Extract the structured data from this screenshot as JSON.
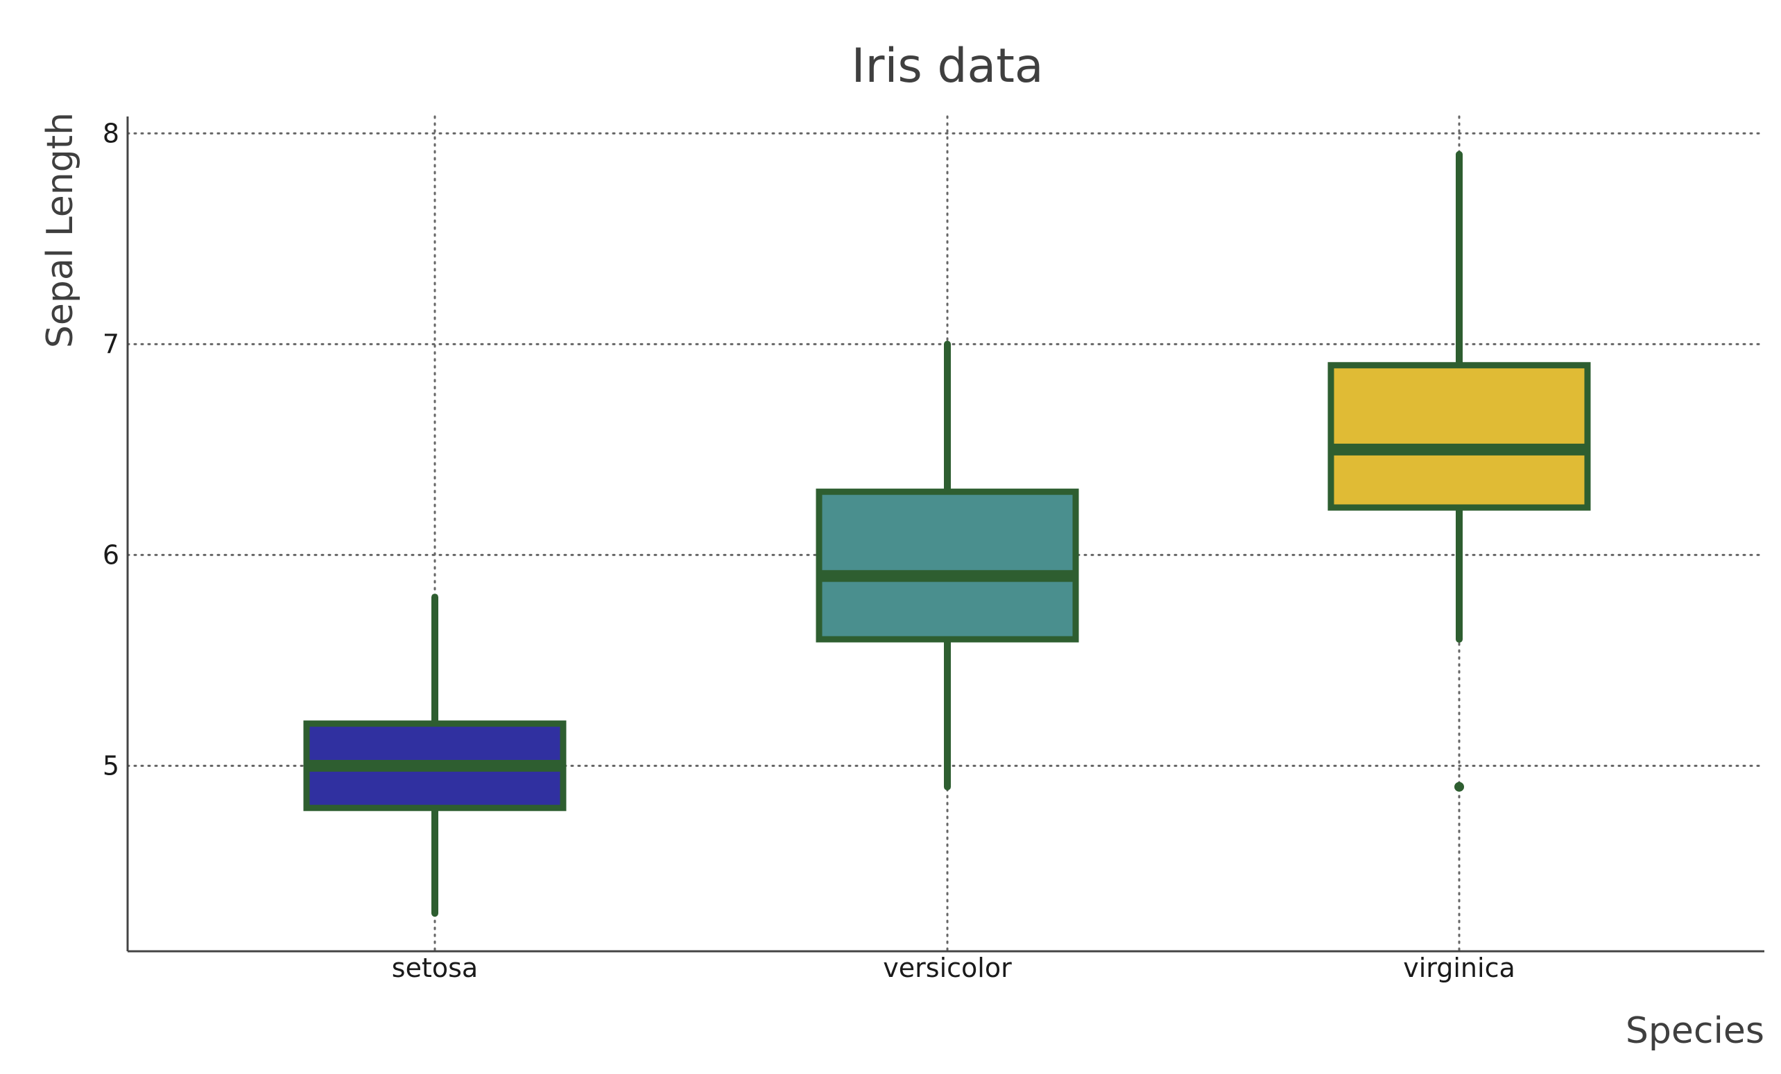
{
  "chart_data": {
    "type": "box",
    "title": "Iris data",
    "xlabel": "Species",
    "ylabel": "Sepal Length",
    "categories": [
      "setosa",
      "versicolor",
      "virginica"
    ],
    "yticks": [
      5,
      6,
      7,
      8
    ],
    "ylim": [
      4.12,
      8.08
    ],
    "grid": true,
    "series": [
      {
        "category": "setosa",
        "whisker_low": 4.3,
        "q1": 4.8,
        "median": 5.0,
        "q3": 5.2,
        "whisker_high": 5.8,
        "outliers": [],
        "fill": "#3030a0"
      },
      {
        "category": "versicolor",
        "whisker_low": 4.9,
        "q1": 5.6,
        "median": 5.9,
        "q3": 6.3,
        "whisker_high": 7.0,
        "outliers": [],
        "fill": "#4a8f8e"
      },
      {
        "category": "virginica",
        "whisker_low": 5.6,
        "q1": 6.225,
        "median": 6.5,
        "q3": 6.9,
        "whisker_high": 7.9,
        "outliers": [
          4.9
        ],
        "fill": "#e0bb35"
      }
    ],
    "colors": {
      "box_edge": "#2e5e30",
      "grid": "#666666",
      "axis": "#444444"
    }
  }
}
